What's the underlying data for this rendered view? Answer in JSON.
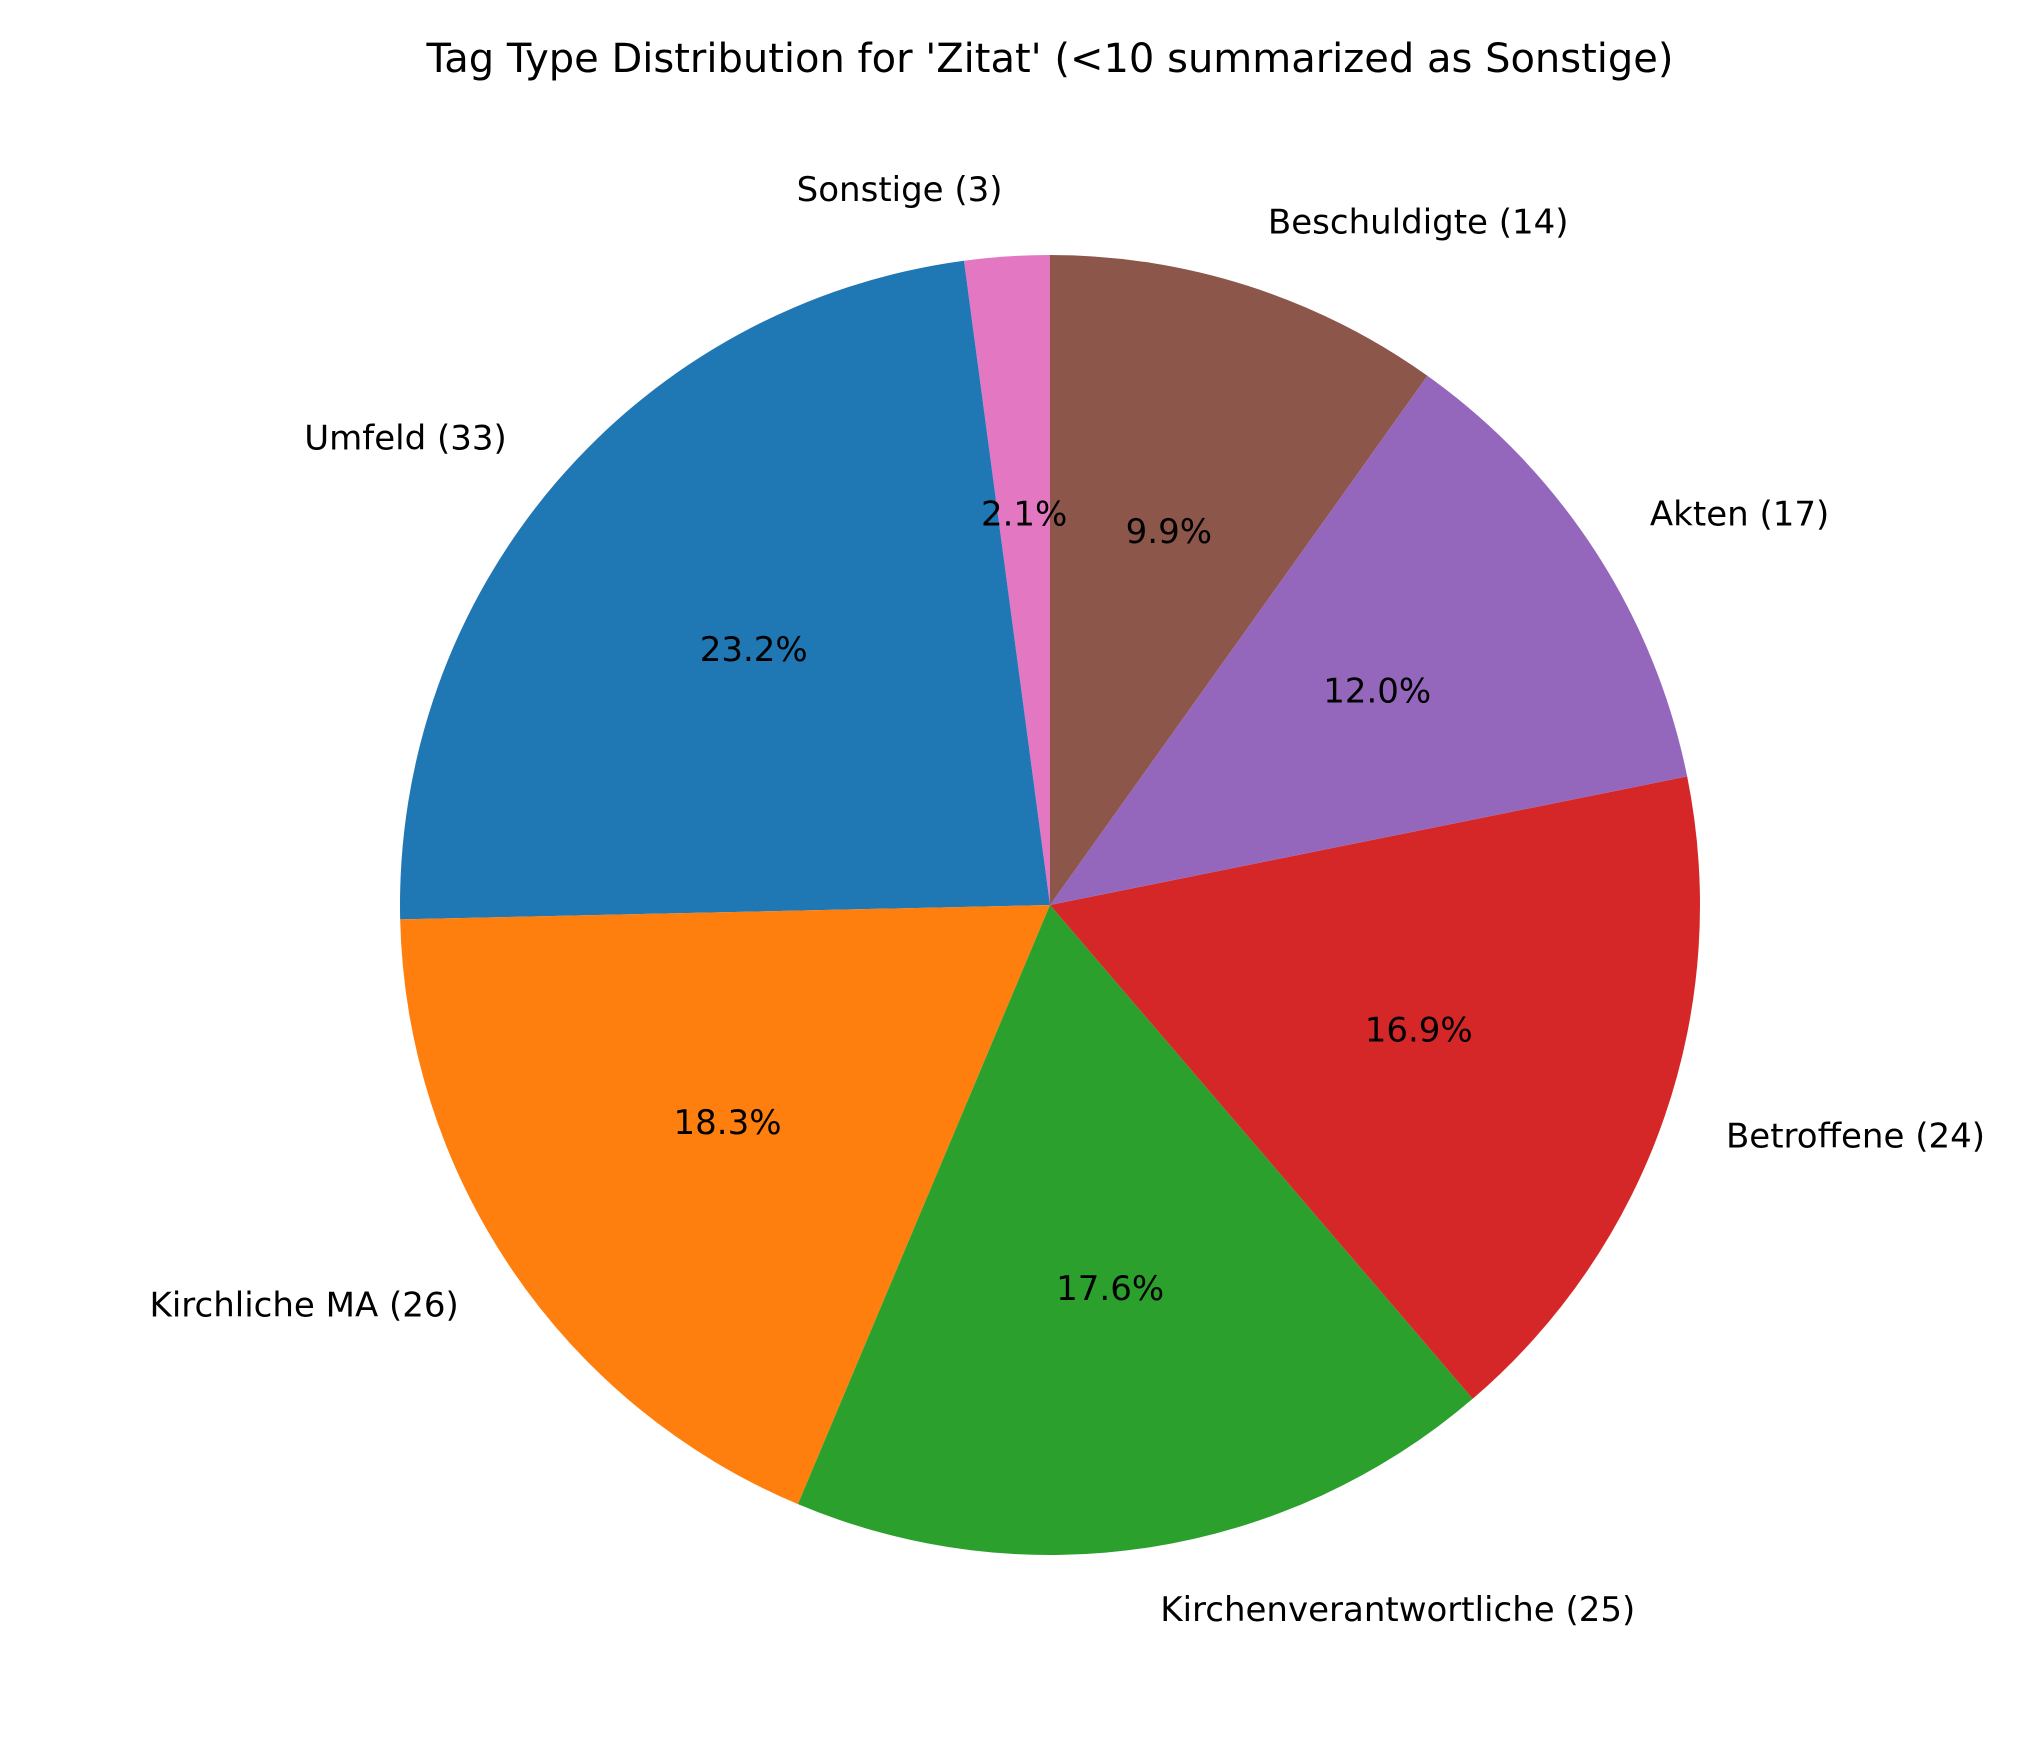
{
  "chart_data": {
    "type": "pie",
    "title": "Tag Type Distribution for 'Zitat' (<10 summarized as Sonstige)",
    "slices": [
      {
        "label": "Sonstige (3)",
        "value": 3,
        "percent_label": "2.1%",
        "color": "#e377c2"
      },
      {
        "label": "Umfeld (33)",
        "value": 33,
        "percent_label": "23.2%",
        "color": "#1f77b4"
      },
      {
        "label": "Kirchliche MA (26)",
        "value": 26,
        "percent_label": "18.3%",
        "color": "#ff7f0e"
      },
      {
        "label": "Kirchenverantwortliche (25)",
        "value": 25,
        "percent_label": "17.6%",
        "color": "#2ca02c"
      },
      {
        "label": "Betroffene (24)",
        "value": 24,
        "percent_label": "16.9%",
        "color": "#d62728"
      },
      {
        "label": "Akten (17)",
        "value": 17,
        "percent_label": "12.0%",
        "color": "#9467bd"
      },
      {
        "label": "Beschuldigte (14)",
        "value": 14,
        "percent_label": "9.9%",
        "color": "#8c564b"
      }
    ],
    "start_angle": "top",
    "direction": "counterclockwise"
  }
}
